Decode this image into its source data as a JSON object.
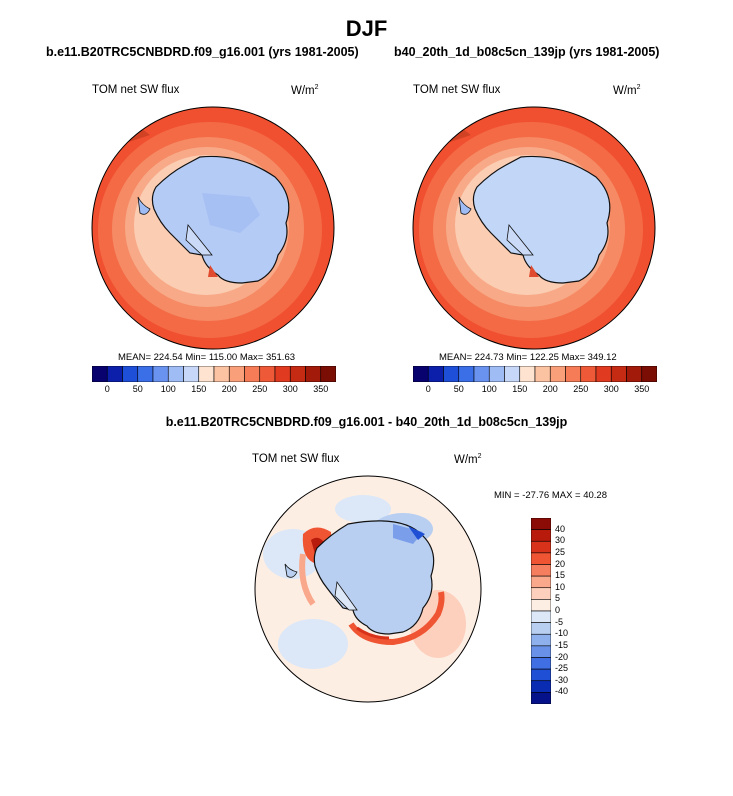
{
  "season": "DJF",
  "panels": [
    {
      "case": "b.e11.B20TRC5CNBDRD.f09_g16.001 (yrs 1981-2005)",
      "variable": "TOM net SW flux",
      "units_base": "W/m",
      "units_exp": "2",
      "stats": "MEAN= 224.54  Min= 115.00  Max= 351.63"
    },
    {
      "case": "b40_20th_1d_b08c5cn_139jp (yrs 1981-2005)",
      "variable": "TOM net SW flux",
      "units_base": "W/m",
      "units_exp": "2",
      "stats": "MEAN= 224.73  Min= 122.25  Max= 349.12"
    }
  ],
  "colorbar_abs": {
    "labels": [
      "0",
      "50",
      "100",
      "150",
      "200",
      "250",
      "300",
      "350"
    ],
    "colors": [
      "#08026e",
      "#0b1faa",
      "#1e4fd8",
      "#3b6fe8",
      "#6a93f0",
      "#9fbcf5",
      "#c6d7f8",
      "#fde3d0",
      "#fcc3a2",
      "#f9a07a",
      "#f57c56",
      "#ee5a37",
      "#e03b20",
      "#c52a13",
      "#a21a0a",
      "#7a0d04"
    ]
  },
  "difference": {
    "title": "b.e11.B20TRC5CNBDRD.f09_g16.001 - b40_20th_1d_b08c5cn_139jp",
    "variable": "TOM net SW flux",
    "units_base": "W/m",
    "units_exp": "2",
    "minmax": "MIN = -27.76 MAX =  40.28",
    "colorbar_labels": [
      "40",
      "30",
      "25",
      "20",
      "15",
      "10",
      "5",
      "0",
      "-5",
      "-10",
      "-15",
      "-20",
      "-25",
      "-30",
      "-40"
    ],
    "colorbar_colors": [
      "#8b0c06",
      "#b81a0c",
      "#d8321a",
      "#ef5533",
      "#f57e5e",
      "#f9a88c",
      "#fcd0bc",
      "#fdeee4",
      "#dce8f7",
      "#b8cff1",
      "#8eb0ec",
      "#6a91e8",
      "#3f6fe2",
      "#1f4fd4",
      "#0a2cb3",
      "#06128a"
    ]
  }
}
